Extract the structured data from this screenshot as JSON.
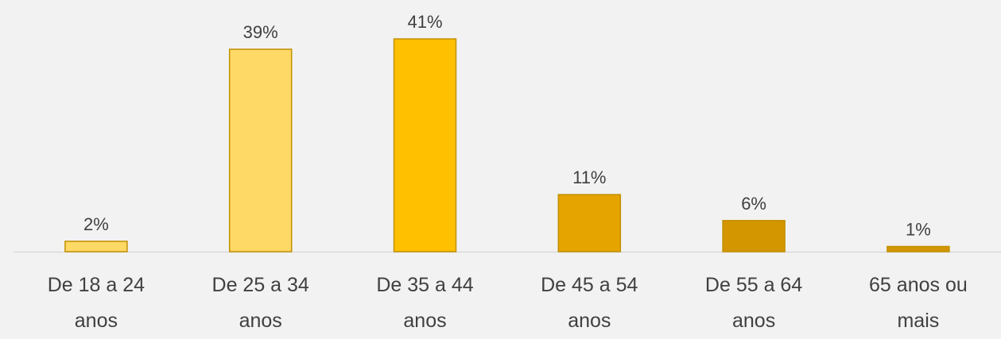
{
  "chart_data": {
    "type": "bar",
    "categories": [
      "De 18 a 24 anos",
      "De 25 a 34 anos",
      "De 35 a 44 anos",
      "De 45 a 54 anos",
      "De 55 a 64 anos",
      "65 anos ou mais"
    ],
    "values": [
      2,
      39,
      41,
      11,
      6,
      1
    ],
    "value_labels": [
      "2%",
      "39%",
      "41%",
      "11%",
      "6%",
      "1%"
    ],
    "colors": [
      "#FFD966",
      "#FFD966",
      "#FFC000",
      "#E6A400",
      "#D39500",
      "#D39500"
    ]
  }
}
